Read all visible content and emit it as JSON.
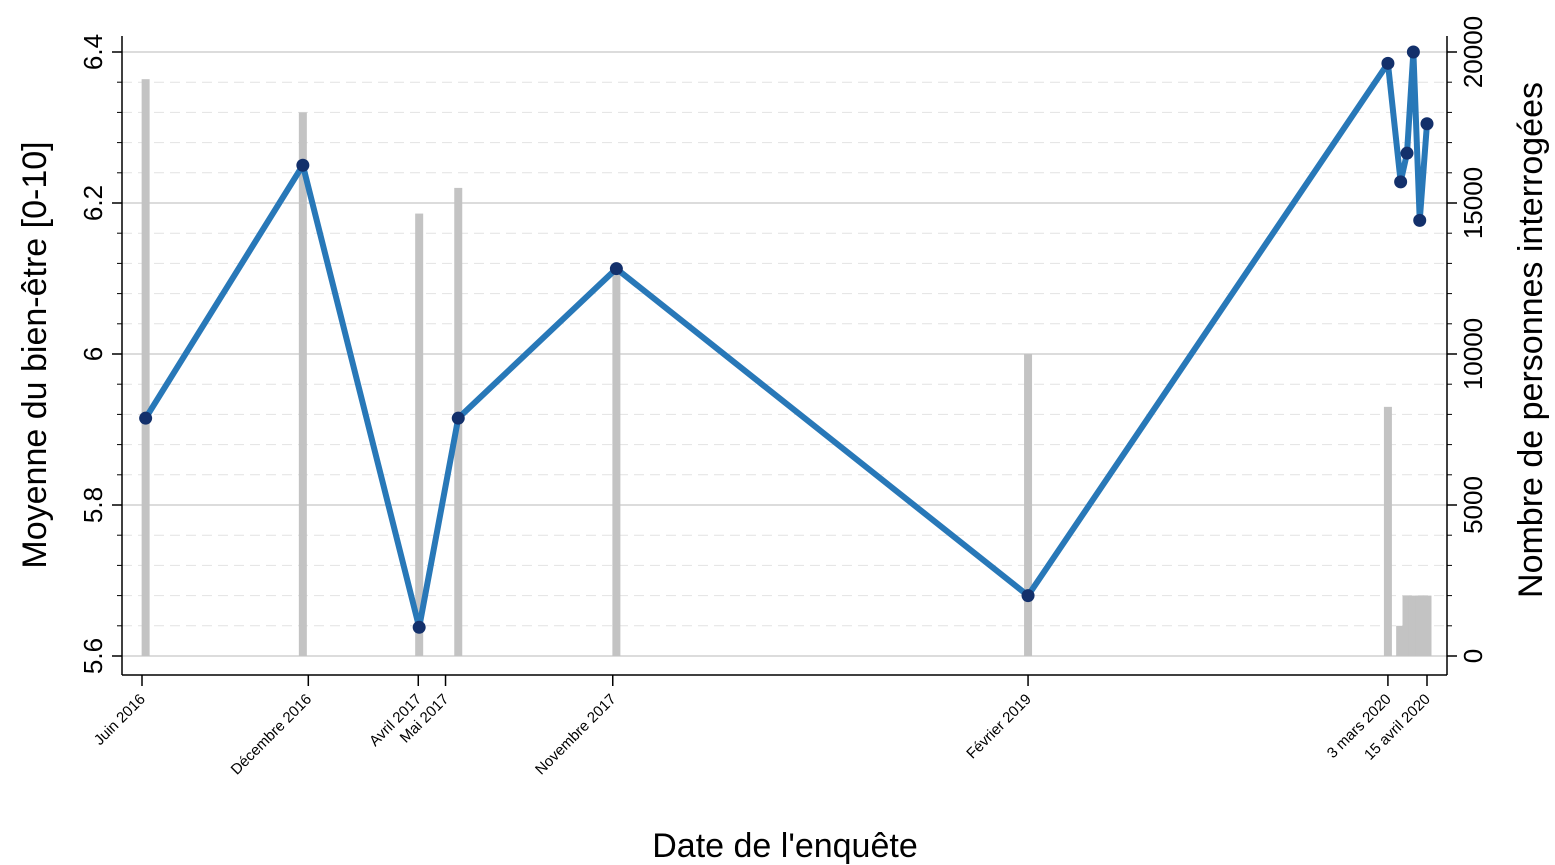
{
  "chart_data": {
    "type": "line",
    "xlabel": "Date de l'enquête",
    "ylabel": "Moyenne du bien-être [0-10]",
    "y2label": "Nombre de personnes interrogées",
    "ylim": [
      5.6,
      6.4
    ],
    "y2lim": [
      0,
      20000
    ],
    "xlim": [
      "2016-06-01",
      "2020-05-01"
    ],
    "yticks": [
      "5.6",
      "5.8",
      "6",
      "6.2",
      "6.4"
    ],
    "y2ticks": [
      "0",
      "5000",
      "10000",
      "15000",
      "20000"
    ],
    "xticks": [
      {
        "label": "Juin 2016",
        "date": "2016-06-01"
      },
      {
        "label": "Décembre 2016",
        "date": "2016-12-01"
      },
      {
        "label": "Avril 2017",
        "date": "2017-04-01"
      },
      {
        "label": "Mai 2017",
        "date": "2017-05-01"
      },
      {
        "label": "Novembre 2017",
        "date": "2017-11-01"
      },
      {
        "label": "Février 2019",
        "date": "2019-02-01"
      },
      {
        "label": "3 mars 2020",
        "date": "2020-03-03"
      },
      {
        "label": "15 avril 2020",
        "date": "2020-04-15"
      }
    ],
    "grid": true,
    "series": [
      {
        "type": "line",
        "axis": "left",
        "color": "#2878b8",
        "marker_color": "#13306b",
        "points": [
          {
            "x": "2016-06-05",
            "y": 5.915
          },
          {
            "x": "2016-11-25",
            "y": 6.25
          },
          {
            "x": "2017-04-02",
            "y": 5.638
          },
          {
            "x": "2017-05-15",
            "y": 5.915
          },
          {
            "x": "2017-11-05",
            "y": 6.113
          },
          {
            "x": "2019-02-01",
            "y": 5.68
          },
          {
            "x": "2020-03-03",
            "y": 6.385
          },
          {
            "x": "2020-03-17",
            "y": 6.228
          },
          {
            "x": "2020-03-24",
            "y": 6.266
          },
          {
            "x": "2020-03-31",
            "y": 6.4
          },
          {
            "x": "2020-04-07",
            "y": 6.177
          },
          {
            "x": "2020-04-15",
            "y": 6.305
          }
        ]
      },
      {
        "type": "bar",
        "axis": "right",
        "color": "#c3c3c3",
        "bars": [
          {
            "x": "2016-06-05",
            "y": 19100
          },
          {
            "x": "2016-11-25",
            "y": 18000
          },
          {
            "x": "2017-04-02",
            "y": 14650
          },
          {
            "x": "2017-05-15",
            "y": 15500
          },
          {
            "x": "2017-11-05",
            "y": 12700
          },
          {
            "x": "2019-02-01",
            "y": 10000
          },
          {
            "x": "2020-03-03",
            "y": 8250
          },
          {
            "x": "2020-03-17",
            "y": 1000
          },
          {
            "x": "2020-03-24",
            "y": 2000
          },
          {
            "x": "2020-03-31",
            "y": 2000
          },
          {
            "x": "2020-04-07",
            "y": 2000
          },
          {
            "x": "2020-04-15",
            "y": 2000
          }
        ]
      }
    ]
  }
}
